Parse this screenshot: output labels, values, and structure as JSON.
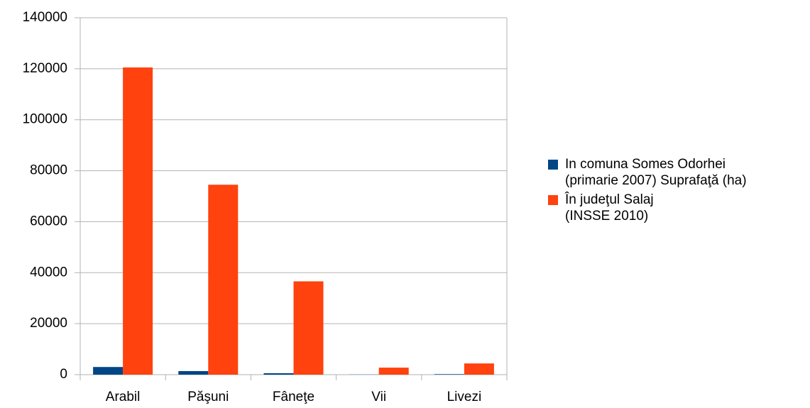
{
  "chart_data": {
    "type": "bar",
    "categories": [
      "Arabil",
      "Păşuni",
      "Fâneţe",
      "Vii",
      "Livezi"
    ],
    "series": [
      {
        "name": "In comuna Somes Odorhei\n(primarie 2007) Suprafaţă (ha)",
        "color": "#004586",
        "values": [
          3000,
          1400,
          550,
          50,
          200
        ]
      },
      {
        "name": "În judeţul  Salaj\n(INSSE 2010)",
        "color": "#ff420e",
        "values": [
          120500,
          74500,
          36600,
          2750,
          4400
        ]
      }
    ],
    "ylim": [
      0,
      140000
    ],
    "yticks": [
      0,
      20000,
      40000,
      60000,
      80000,
      100000,
      120000,
      140000
    ],
    "grid": true
  }
}
